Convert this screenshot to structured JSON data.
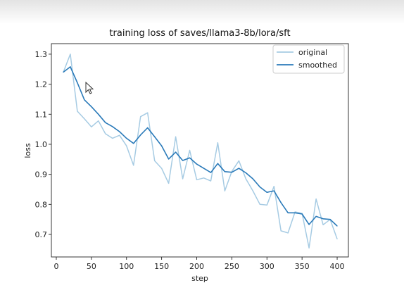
{
  "chart_data": {
    "type": "line",
    "title": "training loss of saves/llama3-8b/lora/sft",
    "xlabel": "step",
    "ylabel": "loss",
    "xlim": [
      -7,
      416
    ],
    "ylim": [
      0.625,
      1.335
    ],
    "xticks": [
      0,
      50,
      100,
      150,
      200,
      250,
      300,
      350,
      400
    ],
    "yticks": [
      0.7,
      0.8,
      0.9,
      1.0,
      1.1,
      1.2,
      1.3
    ],
    "grid": false,
    "legend_placement": "top-right",
    "x": [
      10,
      20,
      30,
      40,
      50,
      60,
      70,
      80,
      90,
      100,
      110,
      120,
      130,
      140,
      150,
      160,
      170,
      180,
      190,
      200,
      210,
      220,
      230,
      240,
      250,
      260,
      270,
      280,
      290,
      300,
      310,
      320,
      330,
      340,
      350,
      360,
      370,
      380,
      390,
      400
    ],
    "series": [
      {
        "name": "original",
        "color": "#a6cbe3",
        "values": [
          1.24,
          1.3,
          1.11,
          1.085,
          1.058,
          1.078,
          1.035,
          1.02,
          1.03,
          0.995,
          0.93,
          1.092,
          1.105,
          0.945,
          0.92,
          0.87,
          1.025,
          0.885,
          0.98,
          0.882,
          0.888,
          0.878,
          1.005,
          0.845,
          0.91,
          0.945,
          0.885,
          0.845,
          0.8,
          0.798,
          0.86,
          0.712,
          0.705,
          0.775,
          0.77,
          0.655,
          0.818,
          0.732,
          0.75,
          0.685
        ]
      },
      {
        "name": "smoothed",
        "color": "#2a7ab9",
        "values": [
          1.24,
          1.258,
          1.205,
          1.148,
          1.125,
          1.1,
          1.072,
          1.059,
          1.042,
          1.02,
          1.003,
          1.031,
          1.055,
          1.025,
          0.995,
          0.951,
          0.974,
          0.946,
          0.955,
          0.934,
          0.92,
          0.906,
          0.936,
          0.909,
          0.907,
          0.92,
          0.905,
          0.885,
          0.858,
          0.84,
          0.845,
          0.806,
          0.772,
          0.772,
          0.768,
          0.733,
          0.76,
          0.752,
          0.75,
          0.728
        ]
      }
    ]
  }
}
